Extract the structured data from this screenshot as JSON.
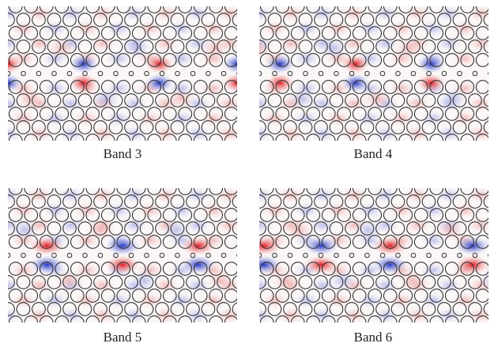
{
  "panels": [
    {
      "label": "Band 3"
    },
    {
      "label": "Band 4"
    },
    {
      "label": "Band 5"
    },
    {
      "label": "Band 6"
    }
  ]
}
